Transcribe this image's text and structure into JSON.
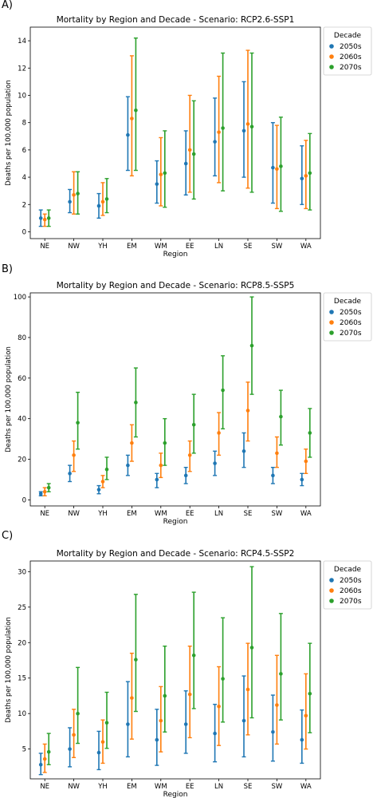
{
  "panel_labels": [
    "A)",
    "B)",
    "C)"
  ],
  "colors": {
    "2050s": "#1f77b4",
    "2060s": "#ff7f0e",
    "2070s": "#2ca02c"
  },
  "chart_data": [
    {
      "type": "scatter",
      "title": "Mortality by Region and Decade - Scenario: RCP2.6-SSP1",
      "xlabel": "Region",
      "ylabel": "Deaths per 100,000 population",
      "categories": [
        "NE",
        "NW",
        "YH",
        "EM",
        "WM",
        "EE",
        "LN",
        "SE",
        "SW",
        "WA"
      ],
      "ylim": [
        -0.5,
        15
      ],
      "yticks": [
        0,
        2,
        4,
        6,
        8,
        10,
        12,
        14
      ],
      "legend_title": "Decade",
      "legend_position": "outside-right",
      "series": [
        {
          "name": "2050s",
          "values": [
            1.0,
            2.2,
            1.9,
            7.1,
            3.5,
            5.0,
            6.6,
            7.4,
            4.7,
            3.9
          ],
          "lower": [
            0.4,
            1.4,
            1.0,
            4.5,
            2.1,
            2.7,
            4.1,
            4.0,
            2.1,
            2.0
          ],
          "upper": [
            1.6,
            3.1,
            2.8,
            9.9,
            5.2,
            7.4,
            9.8,
            11.0,
            8.0,
            6.3
          ]
        },
        {
          "name": "2060s",
          "values": [
            0.9,
            2.7,
            2.2,
            8.3,
            4.2,
            6.0,
            7.3,
            7.9,
            4.6,
            4.1
          ],
          "lower": [
            0.4,
            1.3,
            1.2,
            4.1,
            1.9,
            2.9,
            3.6,
            3.2,
            1.7,
            1.7
          ],
          "upper": [
            1.3,
            4.4,
            3.6,
            12.9,
            6.9,
            10.0,
            11.4,
            13.3,
            7.8,
            6.7
          ]
        },
        {
          "name": "2070s",
          "values": [
            1.0,
            2.8,
            2.4,
            8.9,
            4.3,
            5.7,
            7.6,
            7.7,
            4.8,
            4.3
          ],
          "lower": [
            0.4,
            1.3,
            1.4,
            4.5,
            1.8,
            2.4,
            3.0,
            2.9,
            1.5,
            1.6
          ],
          "upper": [
            1.6,
            4.4,
            3.9,
            14.2,
            7.4,
            9.6,
            13.1,
            13.1,
            8.4,
            7.2
          ]
        }
      ]
    },
    {
      "type": "scatter",
      "title": "Mortality by Region and Decade - Scenario: RCP8.5-SSP5",
      "xlabel": "Region",
      "ylabel": "Deaths per 100,000 population",
      "categories": [
        "NE",
        "NW",
        "YH",
        "EM",
        "WM",
        "EE",
        "LN",
        "SE",
        "SW",
        "WA"
      ],
      "ylim": [
        -3,
        102
      ],
      "yticks": [
        0,
        20,
        40,
        60,
        80,
        100
      ],
      "legend_title": "Decade",
      "legend_position": "outside-right",
      "series": [
        {
          "name": "2050s",
          "values": [
            3,
            13,
            5,
            17,
            10,
            12,
            18,
            24,
            12,
            10
          ],
          "lower": [
            2,
            9,
            3,
            12,
            6,
            8,
            12,
            16,
            8,
            7
          ],
          "upper": [
            4,
            17,
            7,
            22,
            13,
            16,
            24,
            33,
            16,
            13
          ]
        },
        {
          "name": "2060s",
          "values": [
            4,
            22,
            9,
            28,
            17,
            22,
            33,
            44,
            23,
            19
          ],
          "lower": [
            2,
            14,
            6,
            19,
            11,
            14,
            22,
            29,
            16,
            13
          ],
          "upper": [
            6,
            29,
            12,
            37,
            23,
            29,
            43,
            58,
            31,
            25
          ]
        },
        {
          "name": "2070s",
          "values": [
            6,
            38,
            15,
            48,
            28,
            37,
            54,
            76,
            41,
            33
          ],
          "lower": [
            4,
            25,
            10,
            31,
            17,
            23,
            35,
            52,
            27,
            21
          ],
          "upper": [
            8,
            53,
            21,
            65,
            40,
            52,
            71,
            100,
            54,
            45
          ]
        }
      ]
    },
    {
      "type": "scatter",
      "title": "Mortality by Region and Decade - Scenario: RCP4.5-SSP2",
      "xlabel": "Region",
      "ylabel": "Deaths per 100,000 population",
      "categories": [
        "NE",
        "NW",
        "YH",
        "EM",
        "WM",
        "EE",
        "LN",
        "SE",
        "SW",
        "WA"
      ],
      "ylim": [
        0.8,
        31.5
      ],
      "yticks": [
        5,
        10,
        15,
        20,
        25,
        30
      ],
      "legend_title": "Decade",
      "legend_position": "outside-right",
      "series": [
        {
          "name": "2050s",
          "values": [
            2.8,
            5.0,
            4.5,
            8.5,
            6.3,
            8.5,
            7.2,
            9.0,
            7.4,
            6.3
          ],
          "lower": [
            1.4,
            2.5,
            2.1,
            3.9,
            2.7,
            4.4,
            3.2,
            3.9,
            3.3,
            3.0
          ],
          "upper": [
            4.4,
            8.0,
            7.5,
            14.5,
            10.6,
            13.2,
            11.3,
            15.3,
            12.6,
            10.5
          ]
        },
        {
          "name": "2060s",
          "values": [
            3.6,
            7.0,
            6.0,
            12.2,
            9.0,
            12.7,
            11.0,
            13.4,
            11.2,
            9.7
          ],
          "lower": [
            1.7,
            3.8,
            3.0,
            6.4,
            4.6,
            6.6,
            5.5,
            7.0,
            5.7,
            5.0
          ],
          "upper": [
            5.7,
            10.6,
            9.1,
            18.5,
            13.8,
            19.5,
            16.6,
            19.9,
            18.2,
            15.6
          ]
        },
        {
          "name": "2070s",
          "values": [
            4.6,
            10.0,
            8.7,
            17.6,
            12.5,
            18.2,
            14.9,
            19.3,
            15.6,
            12.8
          ],
          "lower": [
            2.8,
            5.8,
            5.1,
            10.3,
            7.4,
            10.7,
            8.8,
            9.4,
            9.1,
            7.3
          ],
          "upper": [
            7.2,
            16.5,
            13.0,
            26.8,
            19.5,
            27.1,
            23.5,
            30.7,
            24.1,
            19.9
          ]
        }
      ]
    }
  ]
}
